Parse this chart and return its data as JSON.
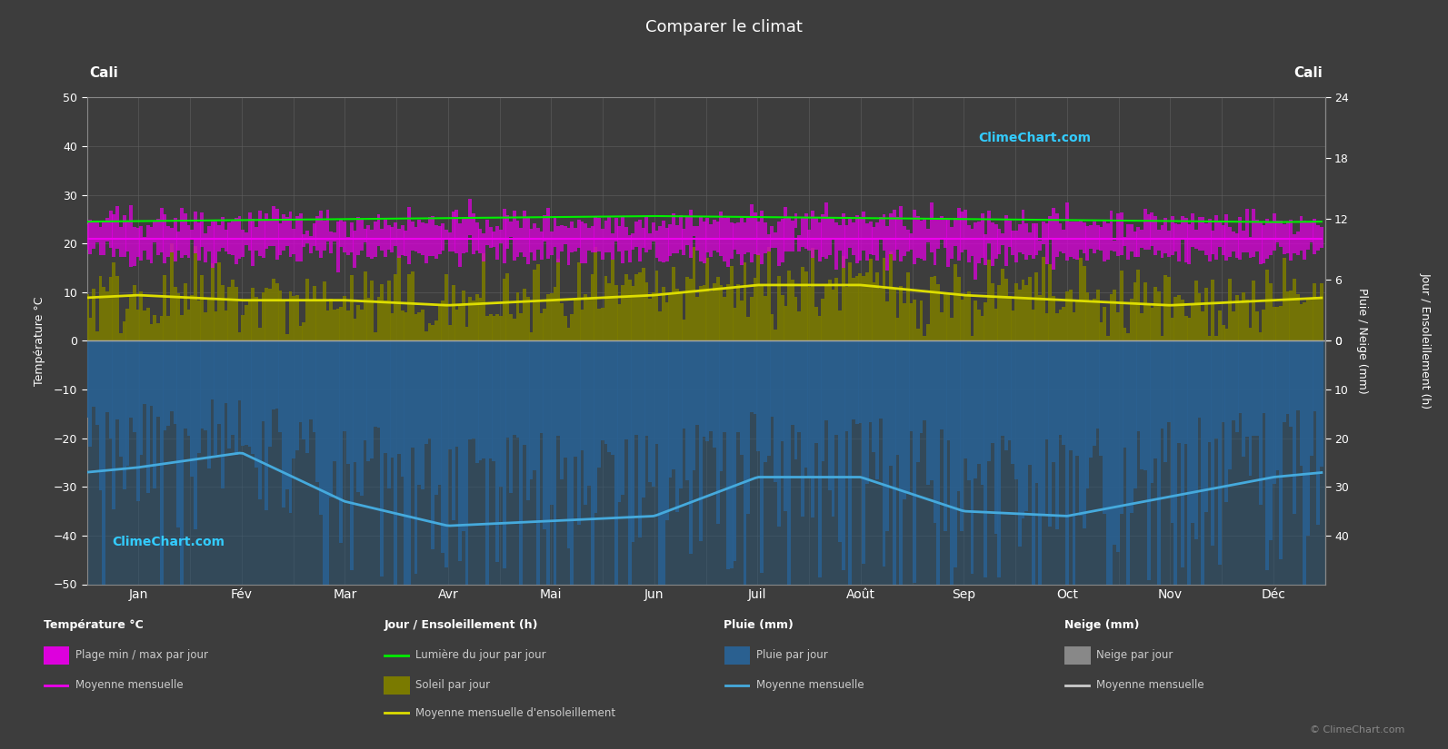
{
  "title": "Comparer le climat",
  "city_left": "Cali",
  "city_right": "Cali",
  "background_color": "#3d3d3d",
  "plot_bg_color": "#3d3d3d",
  "months": [
    "Jan",
    "Fév",
    "Mar",
    "Avr",
    "Mai",
    "Jun",
    "Juil",
    "Août",
    "Sep",
    "Oct",
    "Nov",
    "Déc"
  ],
  "temp_ylim": [
    -50,
    50
  ],
  "temp_ticks": [
    -50,
    -40,
    -30,
    -20,
    -10,
    0,
    10,
    20,
    30,
    40,
    50
  ],
  "sun_ticks": [
    0,
    6,
    12,
    18,
    24
  ],
  "rain_ticks_vals": [
    0,
    10,
    20,
    30,
    40
  ],
  "rain_ticks_pos": [
    0,
    -10,
    -20,
    -30,
    -40
  ],
  "ylabel_left_temp": "Température °C",
  "ylabel_right_sun": "Jour / Ensoleillement (h)",
  "ylabel_right_rain": "Pluie / Neige (mm)",
  "temp_min_monthly": [
    18.0,
    18.0,
    18.0,
    18.0,
    18.0,
    17.5,
    17.5,
    17.5,
    17.5,
    17.5,
    17.5,
    18.0
  ],
  "temp_max_monthly": [
    24.5,
    24.5,
    24.5,
    24.5,
    24.5,
    24.5,
    25.0,
    25.0,
    24.5,
    24.5,
    24.5,
    24.5
  ],
  "temp_mean_monthly": [
    21.0,
    21.0,
    21.0,
    21.0,
    21.0,
    21.0,
    21.0,
    21.0,
    21.0,
    21.0,
    21.0,
    21.0
  ],
  "daylight_monthly": [
    11.8,
    11.9,
    12.0,
    12.1,
    12.2,
    12.3,
    12.2,
    12.1,
    12.0,
    11.9,
    11.8,
    11.7
  ],
  "sunshine_monthly": [
    4.5,
    4.0,
    4.0,
    3.5,
    4.0,
    4.5,
    5.5,
    5.5,
    4.5,
    4.0,
    3.5,
    4.0
  ],
  "rain_mean_monthly": [
    26,
    23,
    33,
    38,
    37,
    36,
    28,
    28,
    35,
    36,
    32,
    28
  ],
  "grid_color": "#606060",
  "temp_range_color": "#dd00dd",
  "olive_color": "#7a7a00",
  "rain_bar_color": "#2a6090",
  "rain_bg_color": "#2a5575",
  "daylight_line_color": "#00ee00",
  "sun_mean_line_color": "#dddd00",
  "temp_mean_line_color": "#ee00ee",
  "rain_mean_line_color": "#45aadd",
  "num_days": 365
}
